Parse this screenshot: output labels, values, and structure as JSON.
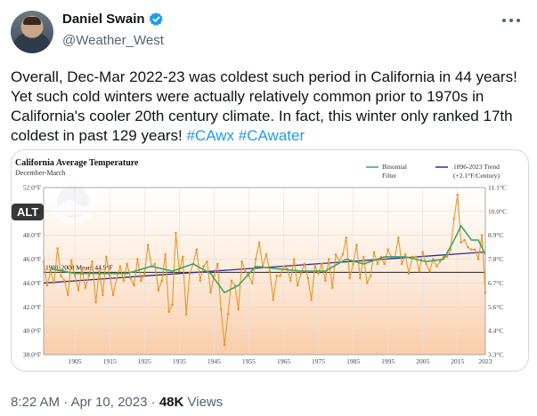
{
  "author": {
    "display_name": "Daniel Swain",
    "handle": "@Weather_West"
  },
  "tweet": {
    "text": "Overall, Dec-Mar 2022-23 was coldest such period in California in 44 years! Yet such cold winters were actually relatively common prior to 1970s in California's cooler 20th century climate. In fact, this winter only ranked 17th coldest in past 129 years!",
    "hashtags": [
      "#CAwx",
      "#CAwater"
    ]
  },
  "media": {
    "alt_label": "ALT"
  },
  "meta": {
    "time": "8:22 AM",
    "separator": "·",
    "date": "Apr 10, 2023",
    "views_count": "48K",
    "views_label": "Views"
  },
  "colors": {
    "accent": "#1d9bf0",
    "filter": "#3aa861",
    "trend": "#2a2aa8",
    "annual": "#e8972a"
  },
  "chart_data": {
    "type": "line",
    "title": "California Average Temperature",
    "subtitle": "December-March",
    "xlim": [
      1896,
      2023
    ],
    "ylim": [
      38,
      52
    ],
    "x_ticks": [
      "1905",
      "1915",
      "1925",
      "1935",
      "1945",
      "1955",
      "1965",
      "1975",
      "1985",
      "1995",
      "2005",
      "2015",
      "2023"
    ],
    "y_left_ticks": [
      "38.0°F",
      "40.0°F",
      "42.0°F",
      "44.0°F",
      "46.0°F",
      "48.0°F",
      "50.0°F",
      "52.0°F"
    ],
    "y_right_ticks": [
      "3.3°C",
      "4.4°C",
      "5.6°C",
      "6.7°C",
      "7.8°C",
      "8.9°C",
      "10.0°C",
      "11.1°C"
    ],
    "mean_label": "1901-2000 Mean: 44.9°F",
    "mean_value": 44.9,
    "legend": {
      "filter_name": "Binomial",
      "filter_name2": "Filter",
      "trend_name": "1896-2023 Trend",
      "trend_rate": "(+2.1°F/Century)"
    },
    "trend": {
      "start": [
        1896,
        44.0
      ],
      "end": [
        2023,
        46.6
      ]
    },
    "series": [
      {
        "name": "Annual",
        "x": [
          1896,
          1897,
          1898,
          1899,
          1900,
          1901,
          1902,
          1903,
          1904,
          1905,
          1906,
          1907,
          1908,
          1909,
          1910,
          1911,
          1912,
          1913,
          1914,
          1915,
          1916,
          1917,
          1918,
          1919,
          1920,
          1921,
          1922,
          1923,
          1924,
          1925,
          1926,
          1927,
          1928,
          1929,
          1930,
          1931,
          1932,
          1933,
          1934,
          1935,
          1936,
          1937,
          1938,
          1939,
          1940,
          1941,
          1942,
          1943,
          1944,
          1945,
          1946,
          1947,
          1948,
          1949,
          1950,
          1951,
          1952,
          1953,
          1954,
          1955,
          1956,
          1957,
          1958,
          1959,
          1960,
          1961,
          1962,
          1963,
          1964,
          1965,
          1966,
          1967,
          1968,
          1969,
          1970,
          1971,
          1972,
          1973,
          1974,
          1975,
          1976,
          1977,
          1978,
          1979,
          1980,
          1981,
          1982,
          1983,
          1984,
          1985,
          1986,
          1987,
          1988,
          1989,
          1990,
          1991,
          1992,
          1993,
          1994,
          1995,
          1996,
          1997,
          1998,
          1999,
          2000,
          2001,
          2002,
          2003,
          2004,
          2005,
          2006,
          2007,
          2008,
          2009,
          2010,
          2011,
          2012,
          2013,
          2014,
          2015,
          2016,
          2017,
          2018,
          2019,
          2020,
          2021,
          2022,
          2023
        ],
        "values": [
          45.8,
          43.8,
          45.0,
          44.0,
          46.9,
          44.6,
          44.2,
          43.0,
          45.9,
          44.6,
          43.4,
          45.2,
          43.6,
          44.6,
          45.8,
          42.4,
          45.0,
          43.0,
          46.2,
          44.6,
          43.0,
          44.4,
          45.4,
          44.2,
          45.6,
          44.4,
          43.8,
          46.0,
          44.2,
          44.8,
          47.2,
          45.4,
          45.6,
          43.4,
          44.2,
          46.4,
          41.6,
          42.2,
          48.2,
          45.0,
          46.2,
          41.4,
          44.8,
          45.6,
          46.8,
          44.2,
          45.4,
          45.8,
          43.2,
          44.6,
          45.6,
          41.8,
          38.8,
          41.4,
          44.2,
          43.8,
          41.8,
          45.8,
          45.0,
          44.6,
          44.0,
          46.0,
          47.4,
          45.4,
          46.4,
          45.0,
          42.6,
          44.6,
          44.6,
          45.4,
          45.2,
          44.2,
          46.0,
          43.8,
          44.8,
          45.6,
          44.4,
          42.6,
          45.4,
          44.8,
          45.6,
          44.2,
          46.0,
          43.6,
          46.4,
          45.8,
          46.4,
          47.8,
          44.4,
          45.6,
          47.2,
          44.4,
          46.2,
          44.0,
          44.6,
          46.6,
          45.6,
          46.2,
          45.6,
          46.8,
          46.2,
          46.2,
          47.8,
          45.6,
          46.4,
          44.8,
          46.2,
          46.2,
          45.0,
          46.6,
          45.6,
          45.0,
          46.0,
          45.4,
          45.8,
          46.2,
          46.2,
          46.8,
          49.4,
          51.4,
          47.4,
          47.6,
          47.0,
          46.8,
          46.8,
          46.0,
          48.0,
          43.2
        ]
      },
      {
        "name": "Binomial Filter",
        "x": [
          1898,
          1905,
          1912,
          1920,
          1927,
          1933,
          1939,
          1944,
          1948,
          1952,
          1957,
          1963,
          1970,
          1977,
          1983,
          1988,
          1994,
          2000,
          2006,
          2011,
          2014,
          2016,
          2019,
          2021,
          2023
        ],
        "values": [
          45.2,
          44.8,
          44.8,
          44.8,
          45.4,
          45.0,
          45.6,
          44.8,
          43.2,
          43.8,
          45.4,
          45.2,
          45.0,
          45.0,
          46.0,
          45.6,
          46.2,
          46.2,
          45.8,
          46.0,
          47.6,
          48.8,
          47.6,
          47.6,
          46.4
        ]
      }
    ]
  }
}
